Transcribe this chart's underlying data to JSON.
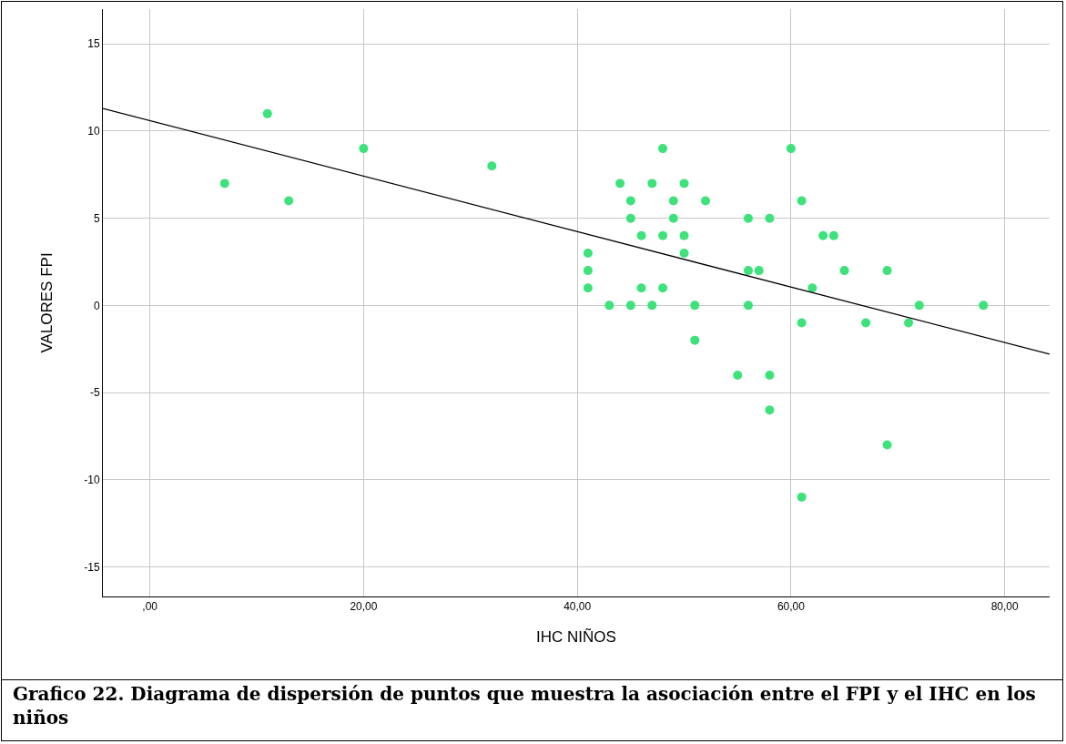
{
  "chart_data": {
    "type": "scatter",
    "xlabel": "IHC NIÑOS",
    "ylabel": "VALORES FPI",
    "annotations": [
      "Grafico 22. Diagrama de dispersión de puntos que muestra la asociación entre el FPI y el IHC en los niños"
    ],
    "xlim": [
      -4.4,
      84.2
    ],
    "ylim": [
      -16.7,
      17
    ],
    "xticks": [
      {
        "value": 0,
        "label": ",00"
      },
      {
        "value": 20,
        "label": "20,00"
      },
      {
        "value": 40,
        "label": "40,00"
      },
      {
        "value": 60,
        "label": "60,00"
      },
      {
        "value": 80,
        "label": "80,00"
      }
    ],
    "yticks": [
      -15,
      -10,
      -5,
      0,
      5,
      10,
      15
    ],
    "grid": true,
    "marker": "circle",
    "series": [
      {
        "type": "scatter",
        "color": "#3de27b",
        "x": [
          7,
          11,
          13,
          20,
          32,
          41,
          41,
          41,
          43,
          44,
          45,
          45,
          45,
          46,
          46,
          47,
          47,
          48,
          48,
          48,
          49,
          49,
          50,
          50,
          50,
          51,
          51,
          52,
          55,
          56,
          56,
          56,
          57,
          58,
          58,
          58,
          60,
          61,
          61,
          61,
          62,
          63,
          64,
          65,
          67,
          69,
          69,
          71,
          72,
          78
        ],
        "values": [
          7,
          11,
          6,
          9,
          8,
          3,
          2,
          1,
          0,
          7,
          6,
          5,
          0,
          4,
          1,
          7,
          0,
          9,
          4,
          1,
          6,
          5,
          7,
          4,
          3,
          0,
          -2,
          6,
          -4,
          5,
          2,
          0,
          2,
          5,
          -4,
          -6,
          9,
          6,
          -1,
          -11,
          1,
          4,
          4,
          2,
          -1,
          2,
          -8,
          -1,
          0,
          0
        ]
      },
      {
        "type": "line",
        "color": "#000000",
        "marker": "none",
        "line_style": "solid",
        "x": [
          -4.4,
          84.2
        ],
        "values": [
          11.3,
          -2.8
        ]
      }
    ]
  }
}
